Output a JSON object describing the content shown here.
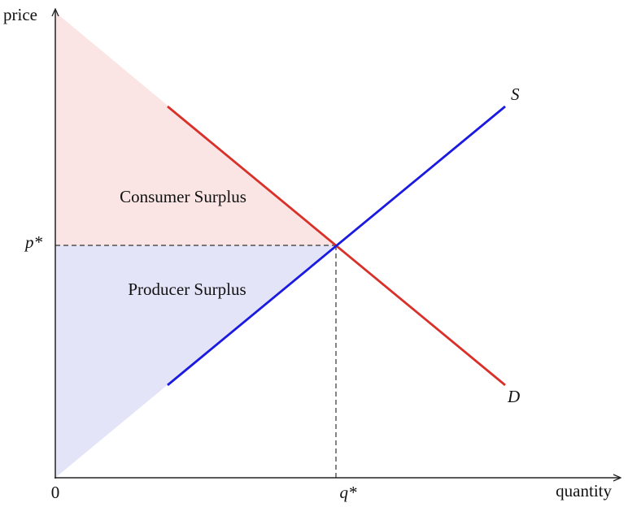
{
  "axes": {
    "y_label": "price",
    "x_label": "quantity",
    "origin": "0"
  },
  "equilibrium": {
    "price_label": "p*",
    "quantity_label": "q*"
  },
  "curves": {
    "supply": "S",
    "demand": "D"
  },
  "areas": {
    "consumer": "Consumer Surplus",
    "producer": "Producer Surplus"
  }
}
